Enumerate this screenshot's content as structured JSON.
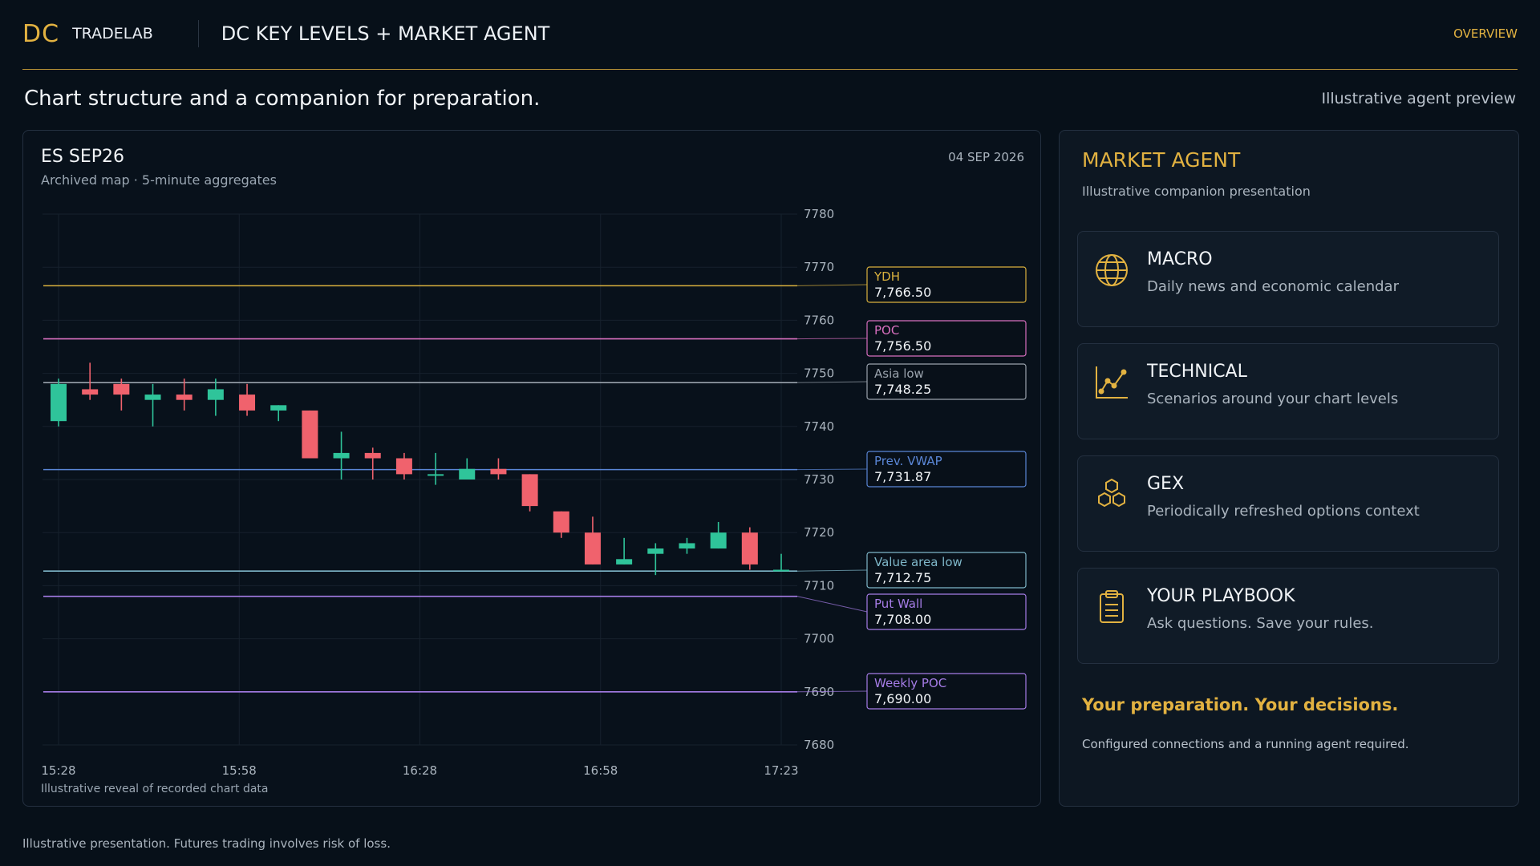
{
  "header": {
    "logo": "DC",
    "brand": "TRADELAB",
    "title": "DC KEY LEVELS + MARKET AGENT",
    "overview_link": "OVERVIEW"
  },
  "tagline": "Chart structure and a companion for preparation.",
  "preview_note": "Illustrative agent preview",
  "chart_panel": {
    "symbol": "ES SEP26",
    "subtitle": "Archived map · 5-minute aggregates",
    "date": "04 SEP 2026",
    "footnote": "Illustrative reveal of recorded chart data"
  },
  "chart_data": {
    "type": "candlestick",
    "ylim": [
      7680,
      7780
    ],
    "y_ticks": [
      7780,
      7770,
      7760,
      7750,
      7740,
      7730,
      7720,
      7710,
      7700,
      7690,
      7680
    ],
    "x_ticks": [
      "15:28",
      "15:58",
      "16:28",
      "16:58",
      "17:23"
    ],
    "candles": [
      {
        "o": 7741,
        "h": 7749,
        "l": 7740,
        "c": 7748
      },
      {
        "o": 7747,
        "h": 7752,
        "l": 7745,
        "c": 7746
      },
      {
        "o": 7748,
        "h": 7749,
        "l": 7743,
        "c": 7746
      },
      {
        "o": 7745,
        "h": 7748,
        "l": 7740,
        "c": 7746
      },
      {
        "o": 7746,
        "h": 7749,
        "l": 7743,
        "c": 7745
      },
      {
        "o": 7745,
        "h": 7749,
        "l": 7742,
        "c": 7747
      },
      {
        "o": 7746,
        "h": 7748,
        "l": 7742,
        "c": 7743
      },
      {
        "o": 7743,
        "h": 7744,
        "l": 7741,
        "c": 7744
      },
      {
        "o": 7743,
        "h": 7743,
        "l": 7734,
        "c": 7734
      },
      {
        "o": 7734,
        "h": 7739,
        "l": 7730,
        "c": 7735
      },
      {
        "o": 7735,
        "h": 7736,
        "l": 7730,
        "c": 7734
      },
      {
        "o": 7734,
        "h": 7735,
        "l": 7730,
        "c": 7731
      },
      {
        "o": 7731,
        "h": 7735,
        "l": 7729,
        "c": 7731
      },
      {
        "o": 7730,
        "h": 7734,
        "l": 7730,
        "c": 7732
      },
      {
        "o": 7732,
        "h": 7734,
        "l": 7730,
        "c": 7731
      },
      {
        "o": 7731,
        "h": 7731,
        "l": 7724,
        "c": 7725
      },
      {
        "o": 7724,
        "h": 7724,
        "l": 7719,
        "c": 7720
      },
      {
        "o": 7720,
        "h": 7723,
        "l": 7714,
        "c": 7714
      },
      {
        "o": 7714,
        "h": 7719,
        "l": 7714,
        "c": 7715
      },
      {
        "o": 7716,
        "h": 7718,
        "l": 7712,
        "c": 7717
      },
      {
        "o": 7717,
        "h": 7719,
        "l": 7716,
        "c": 7718
      },
      {
        "o": 7717,
        "h": 7722,
        "l": 7717,
        "c": 7720
      },
      {
        "o": 7720,
        "h": 7721,
        "l": 7713,
        "c": 7714
      },
      {
        "o": 7713,
        "h": 7716,
        "l": 7713,
        "c": 7713
      }
    ],
    "levels": [
      {
        "name": "YDH",
        "value": 7766.5,
        "display": "7,766.50",
        "color": "#d9b13e"
      },
      {
        "name": "POC",
        "value": 7756.5,
        "display": "7,756.50",
        "color": "#d86fbf"
      },
      {
        "name": "Asia low",
        "value": 7748.25,
        "display": "7,748.25",
        "color": "#9aa3ad"
      },
      {
        "name": "Prev. VWAP",
        "value": 7731.87,
        "display": "7,731.87",
        "color": "#5a86d6"
      },
      {
        "name": "Value area low",
        "value": 7712.75,
        "display": "7,712.75",
        "color": "#7fb7c9"
      },
      {
        "name": "Put Wall",
        "value": 7708.0,
        "display": "7,708.00",
        "color": "#a57ce6"
      },
      {
        "name": "Weekly POC",
        "value": 7690.0,
        "display": "7,690.00",
        "color": "#a57ce6"
      }
    ],
    "colors": {
      "up": "#2fc49a",
      "down": "#f0626d",
      "grid": "#16212c",
      "axis_text": "#aab4be"
    }
  },
  "agent": {
    "title": "MARKET AGENT",
    "subtitle": "Illustrative companion presentation",
    "cards": [
      {
        "icon": "globe-icon",
        "title": "MACRO",
        "desc": "Daily news and economic calendar"
      },
      {
        "icon": "trend-chart-icon",
        "title": "TECHNICAL",
        "desc": "Scenarios around your chart levels"
      },
      {
        "icon": "hexagons-icon",
        "title": "GEX",
        "desc": "Periodically refreshed options context"
      },
      {
        "icon": "clipboard-icon",
        "title": "YOUR PLAYBOOK",
        "desc": "Ask questions. Save your rules."
      }
    ],
    "cta": "Your preparation. Your decisions.",
    "note": "Configured connections and a running agent required."
  },
  "disclaimer": "Illustrative presentation. Futures trading involves risk of loss.",
  "accent_color": "#e2b241"
}
